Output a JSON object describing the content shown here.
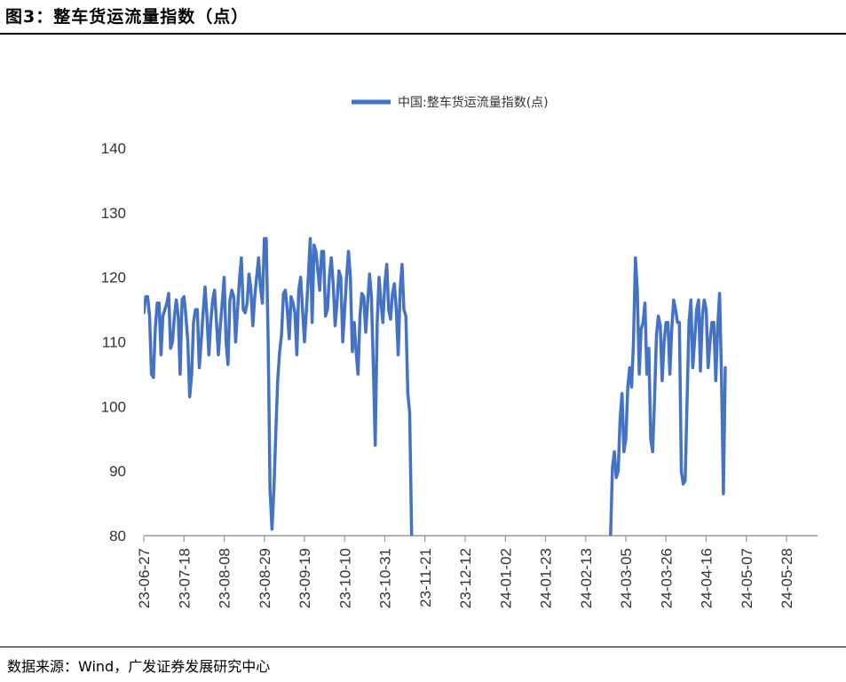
{
  "figure": {
    "title": "图3：整车货运流量指数（点）",
    "source": "数据来源：Wind，广发证券发展研究中心"
  },
  "colors": {
    "series": "#4472C4",
    "axis": "#999999",
    "text": "#333333"
  },
  "chart_data": {
    "type": "line",
    "title": "",
    "xlabel": "",
    "ylabel": "",
    "ylim": [
      80,
      140
    ],
    "yticks": [
      80,
      90,
      100,
      110,
      120,
      130,
      140
    ],
    "grid": false,
    "legend_position": "top-center",
    "xticks": [
      "23-06-27",
      "23-07-18",
      "23-08-08",
      "23-08-29",
      "23-09-19",
      "23-10-10",
      "23-10-31",
      "23-11-21",
      "23-12-12",
      "24-01-02",
      "24-01-23",
      "24-02-13",
      "24-03-05",
      "24-03-26",
      "24-04-16",
      "24-05-07",
      "24-05-28"
    ],
    "series": [
      {
        "name": "中国:整车货运流量指数(点)",
        "x_start": "2023-06-27",
        "values": [
          114.5,
          117,
          117,
          114,
          105,
          104.5,
          112,
          116,
          116,
          108,
          114,
          115,
          116,
          117.5,
          109,
          110,
          114,
          116.5,
          114,
          105,
          116.5,
          117,
          114,
          110,
          101.5,
          105,
          113,
          115,
          115,
          106,
          110,
          114.5,
          118.5,
          114,
          108,
          113,
          116.5,
          118,
          113,
          108,
          112.5,
          116,
          120,
          110,
          106.5,
          116.5,
          118,
          117,
          110,
          115,
          119.5,
          123,
          115,
          114.5,
          116,
          120.5,
          118,
          112.5,
          117,
          120,
          123,
          118.5,
          116,
          126,
          126,
          110,
          87,
          81,
          87,
          96,
          104,
          108.5,
          111,
          117.5,
          118,
          115,
          110.5,
          117,
          116,
          114.5,
          108,
          118,
          120,
          115,
          110,
          115,
          120,
          126,
          113,
          125,
          124,
          121,
          118,
          124,
          124,
          114,
          115,
          120,
          123,
          119,
          112.5,
          116,
          121,
          120,
          110,
          115,
          120,
          124,
          120,
          108.5,
          113,
          108.5,
          105,
          114,
          117.5,
          117,
          111.5,
          116,
          120.5,
          117,
          106,
          94,
          113,
          120,
          116,
          113,
          119,
          122,
          115,
          113.5,
          117.5,
          119,
          115,
          108,
          118,
          122,
          115,
          114,
          102,
          99,
          80
        ]
      },
      {
        "name": "",
        "x_start": "2024-02-26",
        "values": [
          80,
          90.5,
          93,
          89,
          90,
          98,
          102,
          93,
          95,
          103,
          106,
          103,
          110,
          123,
          118,
          105,
          112,
          113,
          116,
          105,
          109,
          95,
          93,
          101,
          111,
          114,
          112.5,
          104,
          110,
          113,
          113,
          105,
          112,
          116.5,
          115,
          113,
          113,
          90,
          88,
          88.5,
          101,
          113,
          116.5,
          106,
          110.5,
          115,
          116.5,
          105.5,
          114,
          116.5,
          115,
          106,
          110,
          113,
          113,
          104,
          112,
          117.5,
          105,
          86.5,
          106
        ]
      }
    ]
  }
}
